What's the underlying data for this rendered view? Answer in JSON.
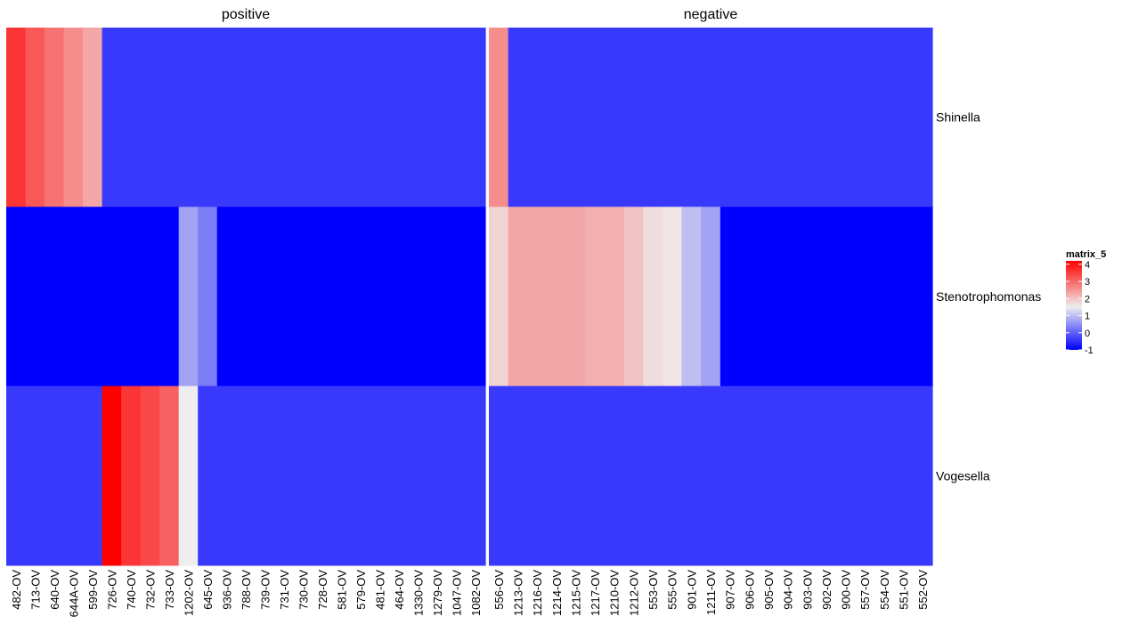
{
  "chart_data": {
    "type": "heatmap",
    "legend": {
      "title": "matrix_5",
      "ticks": [
        4,
        3,
        2,
        1,
        0,
        -1
      ],
      "range": [
        -1,
        4.2
      ],
      "color_stops": [
        {
          "value": -1,
          "color": "#0000FF"
        },
        {
          "value": 1.5,
          "color": "#EEEEEE"
        },
        {
          "value": 4.2,
          "color": "#FF0000"
        }
      ]
    },
    "rows": [
      "Shinella",
      "Stenotrophomonas",
      "Vogesella"
    ],
    "facets": [
      {
        "title": "positive",
        "columns": [
          "482-OV",
          "713-OV",
          "640-OV",
          "644A-OV",
          "599-OV",
          "726-OV",
          "740-OV",
          "732-OV",
          "733-OV",
          "1202-OV",
          "645-OV",
          "936-OV",
          "788-OV",
          "739-OV",
          "731-OV",
          "730-OV",
          "728-OV",
          "581-OV",
          "579-OV",
          "481-OV",
          "464-OV",
          "1330-OV",
          "1279-OV",
          "1047-OV",
          "1082-OV"
        ],
        "values": [
          [
            3.6,
            3.2,
            2.9,
            2.6,
            2.3,
            -0.4,
            -0.4,
            -0.4,
            -0.4,
            -0.4,
            -0.4,
            -0.4,
            -0.4,
            -0.4,
            -0.4,
            -0.4,
            -0.4,
            -0.4,
            -0.4,
            -0.4,
            -0.4,
            -0.4,
            -0.4,
            -0.4,
            -0.4
          ],
          [
            -1,
            -1,
            -1,
            -1,
            -1,
            -1,
            -1,
            -1,
            -1,
            0.7,
            0.3,
            -1,
            -1,
            -1,
            -1,
            -1,
            -1,
            -1,
            -1,
            -1,
            -1,
            -1,
            -1,
            -1,
            -1
          ],
          [
            -0.4,
            -0.4,
            -0.4,
            -0.4,
            -0.4,
            4.2,
            3.6,
            3.4,
            3.1,
            1.5,
            -0.4,
            -0.4,
            -0.4,
            -0.4,
            -0.4,
            -0.4,
            -0.4,
            -0.4,
            -0.4,
            -0.4,
            -0.4,
            -0.4,
            -0.4,
            -0.4,
            -0.4
          ]
        ]
      },
      {
        "title": "negative",
        "columns": [
          "556-OV",
          "1213-OV",
          "1216-OV",
          "1214-OV",
          "1215-OV",
          "1217-OV",
          "1210-OV",
          "1212-OV",
          "553-OV",
          "555-OV",
          "901-OV",
          "1211-OV",
          "907-OV",
          "906-OV",
          "905-OV",
          "904-OV",
          "903-OV",
          "902-OV",
          "900-OV",
          "557-OV",
          "554-OV",
          "551-OV",
          "552-OV"
        ],
        "values": [
          [
            2.6,
            -0.4,
            -0.4,
            -0.4,
            -0.4,
            -0.4,
            -0.4,
            -0.4,
            -0.4,
            -0.4,
            -0.4,
            -0.4,
            -0.4,
            -0.4,
            -0.4,
            -0.4,
            -0.4,
            -0.4,
            -0.4,
            -0.4,
            -0.4,
            -0.4,
            -0.4
          ],
          [
            1.8,
            2.3,
            2.3,
            2.3,
            2.3,
            2.2,
            2.2,
            2.0,
            1.7,
            1.6,
            1.0,
            0.7,
            -1,
            -1,
            -1,
            -1,
            -1,
            -1,
            -1,
            -1,
            -1,
            -1,
            -1
          ],
          [
            -0.4,
            -0.4,
            -0.4,
            -0.4,
            -0.4,
            -0.4,
            -0.4,
            -0.4,
            -0.4,
            -0.4,
            -0.4,
            -0.4,
            -0.4,
            -0.4,
            -0.4,
            -0.4,
            -0.4,
            -0.4,
            -0.4,
            -0.4,
            -0.4,
            -0.4,
            -0.4
          ]
        ]
      }
    ]
  }
}
